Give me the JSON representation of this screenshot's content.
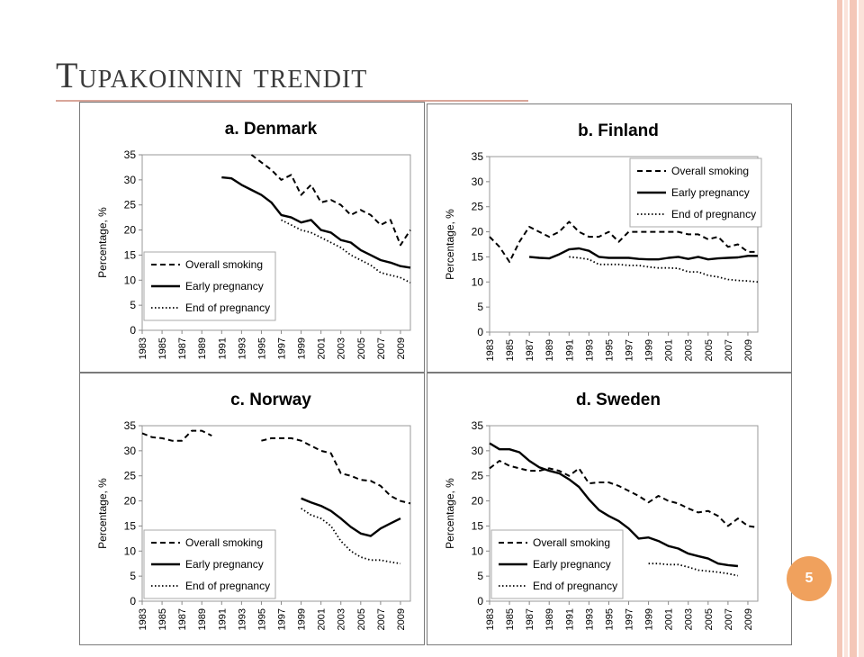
{
  "slide": {
    "title": "Tupakoinnin trendit",
    "page_number": "5",
    "colors": {
      "stripe": "#f4c7b8",
      "stripe_light": "#fbe3da",
      "badge": "#f0a15d",
      "rule": "#d9a69a"
    }
  },
  "chart_data": [
    {
      "type": "line",
      "title": "a. Denmark",
      "ylabel": "Percentage, %",
      "xlabel": "",
      "ylim": [
        0,
        35
      ],
      "yticks": [
        0,
        5,
        10,
        15,
        20,
        25,
        30,
        35
      ],
      "xticks": [
        1983,
        1985,
        1987,
        1989,
        1991,
        1993,
        1995,
        1997,
        1999,
        2001,
        2003,
        2005,
        2007,
        2009
      ],
      "xlim": [
        1983,
        2010
      ],
      "grid": false,
      "legend": "bottom-right",
      "series": [
        {
          "name": "Overall smoking",
          "style": "dashed",
          "points": [
            [
              1994,
              35
            ],
            [
              1995,
              33.5
            ],
            [
              1996,
              32
            ],
            [
              1997,
              30
            ],
            [
              1998,
              31
            ],
            [
              1999,
              27
            ],
            [
              2000,
              29
            ],
            [
              2001,
              25.5
            ],
            [
              2002,
              26
            ],
            [
              2003,
              25
            ],
            [
              2004,
              23
            ],
            [
              2005,
              24
            ],
            [
              2006,
              23
            ],
            [
              2007,
              21
            ],
            [
              2008,
              22
            ],
            [
              2009,
              17
            ],
            [
              2010,
              20
            ]
          ]
        },
        {
          "name": "Early pregnancy",
          "style": "solid",
          "points": [
            [
              1991,
              30.5
            ],
            [
              1992,
              30.3
            ],
            [
              1993,
              29
            ],
            [
              1994,
              28
            ],
            [
              1995,
              27
            ],
            [
              1996,
              25.5
            ],
            [
              1997,
              23
            ],
            [
              1998,
              22.5
            ],
            [
              1999,
              21.5
            ],
            [
              2000,
              22
            ],
            [
              2001,
              20
            ],
            [
              2002,
              19.5
            ],
            [
              2003,
              18
            ],
            [
              2004,
              17.5
            ],
            [
              2005,
              16
            ],
            [
              2006,
              15
            ],
            [
              2007,
              14
            ],
            [
              2008,
              13.5
            ],
            [
              2009,
              12.8
            ],
            [
              2010,
              12.5
            ]
          ]
        },
        {
          "name": "End of pregnancy",
          "style": "dotted",
          "points": [
            [
              1997,
              22
            ],
            [
              1998,
              21
            ],
            [
              1999,
              20
            ],
            [
              2000,
              19.5
            ],
            [
              2001,
              18.5
            ],
            [
              2002,
              17.5
            ],
            [
              2003,
              16.5
            ],
            [
              2004,
              15
            ],
            [
              2005,
              14
            ],
            [
              2006,
              13
            ],
            [
              2007,
              11.5
            ],
            [
              2008,
              11
            ],
            [
              2009,
              10.5
            ],
            [
              2010,
              9.5
            ]
          ]
        }
      ]
    },
    {
      "type": "line",
      "title": "b. Finland",
      "ylabel": "Percentage, %",
      "xlabel": "",
      "ylim": [
        0,
        35
      ],
      "yticks": [
        0,
        5,
        10,
        15,
        20,
        25,
        30,
        35
      ],
      "xticks": [
        1983,
        1985,
        1987,
        1989,
        1991,
        1993,
        1995,
        1997,
        1999,
        2001,
        2003,
        2005,
        2007,
        2009
      ],
      "xlim": [
        1983,
        2010
      ],
      "grid": false,
      "legend": "top-right",
      "series": [
        {
          "name": "Overall smoking",
          "style": "dashed",
          "points": [
            [
              1983,
              19
            ],
            [
              1984,
              17
            ],
            [
              1985,
              14
            ],
            [
              1986,
              18
            ],
            [
              1987,
              21
            ],
            [
              1988,
              20
            ],
            [
              1989,
              19
            ],
            [
              1990,
              20
            ],
            [
              1991,
              22
            ],
            [
              1992,
              20
            ],
            [
              1993,
              19
            ],
            [
              1994,
              19
            ],
            [
              1995,
              20
            ],
            [
              1996,
              18
            ],
            [
              1997,
              20
            ],
            [
              1998,
              20
            ],
            [
              1999,
              20
            ],
            [
              2000,
              20
            ],
            [
              2001,
              20
            ],
            [
              2002,
              20
            ],
            [
              2003,
              19.5
            ],
            [
              2004,
              19.5
            ],
            [
              2005,
              18.5
            ],
            [
              2006,
              19
            ],
            [
              2007,
              17
            ],
            [
              2008,
              17.5
            ],
            [
              2009,
              16
            ],
            [
              2010,
              16
            ]
          ]
        },
        {
          "name": "Early pregnancy",
          "style": "solid",
          "points": [
            [
              1987,
              15
            ],
            [
              1988,
              14.8
            ],
            [
              1989,
              14.7
            ],
            [
              1990,
              15.5
            ],
            [
              1991,
              16.5
            ],
            [
              1992,
              16.7
            ],
            [
              1993,
              16.2
            ],
            [
              1994,
              15
            ],
            [
              1995,
              14.8
            ],
            [
              1996,
              14.8
            ],
            [
              1997,
              14.8
            ],
            [
              1998,
              14.6
            ],
            [
              1999,
              14.5
            ],
            [
              2000,
              14.5
            ],
            [
              2001,
              14.8
            ],
            [
              2002,
              15
            ],
            [
              2003,
              14.6
            ],
            [
              2004,
              15
            ],
            [
              2005,
              14.5
            ],
            [
              2006,
              14.7
            ],
            [
              2007,
              14.8
            ],
            [
              2008,
              14.9
            ],
            [
              2009,
              15.2
            ],
            [
              2010,
              15.2
            ]
          ]
        },
        {
          "name": "End of pregnancy",
          "style": "dotted",
          "points": [
            [
              1991,
              15
            ],
            [
              1992,
              14.8
            ],
            [
              1993,
              14.5
            ],
            [
              1994,
              13.5
            ],
            [
              1995,
              13.5
            ],
            [
              1996,
              13.5
            ],
            [
              1997,
              13.3
            ],
            [
              1998,
              13.3
            ],
            [
              1999,
              13
            ],
            [
              2000,
              12.8
            ],
            [
              2001,
              12.8
            ],
            [
              2002,
              12.7
            ],
            [
              2003,
              12
            ],
            [
              2004,
              12
            ],
            [
              2005,
              11.3
            ],
            [
              2006,
              11
            ],
            [
              2007,
              10.5
            ],
            [
              2008,
              10.3
            ],
            [
              2009,
              10.2
            ],
            [
              2010,
              10
            ]
          ]
        }
      ]
    },
    {
      "type": "line",
      "title": "c. Norway",
      "ylabel": "Percentage, %",
      "xlabel": "",
      "ylim": [
        0,
        35
      ],
      "yticks": [
        0,
        5,
        10,
        15,
        20,
        25,
        30,
        35
      ],
      "xticks": [
        1983,
        1985,
        1987,
        1989,
        1991,
        1993,
        1995,
        1997,
        1999,
        2001,
        2003,
        2005,
        2007,
        2009
      ],
      "xlim": [
        1983,
        2010
      ],
      "grid": false,
      "legend": "bottom-left",
      "series": [
        {
          "name": "Overall smoking",
          "style": "dashed",
          "points": [
            [
              1983,
              33.5
            ],
            [
              1984,
              32.7
            ],
            [
              1985,
              32.5
            ],
            [
              1986,
              32
            ],
            [
              1987,
              32
            ],
            [
              1988,
              34
            ],
            [
              1989,
              34
            ],
            [
              1990,
              33
            ],
            [
              1991,
              null
            ],
            [
              1995,
              32
            ],
            [
              1996,
              32.5
            ],
            [
              1997,
              32.5
            ],
            [
              1998,
              32.5
            ],
            [
              1999,
              32
            ],
            [
              2000,
              31
            ],
            [
              2001,
              30
            ],
            [
              2002,
              29.5
            ],
            [
              2003,
              25.5
            ],
            [
              2004,
              25
            ],
            [
              2005,
              24.2
            ],
            [
              2006,
              24
            ],
            [
              2007,
              23
            ],
            [
              2008,
              21
            ],
            [
              2009,
              20
            ],
            [
              2010,
              19.5
            ]
          ]
        },
        {
          "name": "Early pregnancy",
          "style": "solid",
          "points": [
            [
              1999,
              20.5
            ],
            [
              2000,
              19.7
            ],
            [
              2001,
              19
            ],
            [
              2002,
              18
            ],
            [
              2003,
              16.5
            ],
            [
              2004,
              14.8
            ],
            [
              2005,
              13.5
            ],
            [
              2006,
              13
            ],
            [
              2007,
              14.5
            ],
            [
              2008,
              15.5
            ],
            [
              2009,
              16.5
            ]
          ]
        },
        {
          "name": "End of pregnancy",
          "style": "dotted",
          "points": [
            [
              1999,
              18.5
            ],
            [
              2000,
              17.2
            ],
            [
              2001,
              16.5
            ],
            [
              2002,
              15
            ],
            [
              2003,
              12
            ],
            [
              2004,
              10
            ],
            [
              2005,
              8.8
            ],
            [
              2006,
              8.2
            ],
            [
              2007,
              8.2
            ],
            [
              2008,
              7.8
            ],
            [
              2009,
              7.5
            ]
          ]
        }
      ]
    },
    {
      "type": "line",
      "title": "d. Sweden",
      "ylabel": "Percentage, %",
      "xlabel": "",
      "ylim": [
        0,
        35
      ],
      "yticks": [
        0,
        5,
        10,
        15,
        20,
        25,
        30,
        35
      ],
      "xticks": [
        1983,
        1985,
        1987,
        1989,
        1991,
        1993,
        1995,
        1997,
        1999,
        2001,
        2003,
        2005,
        2007,
        2009
      ],
      "xlim": [
        1983,
        2010
      ],
      "grid": false,
      "legend": "bottom-left",
      "series": [
        {
          "name": "Overall smoking",
          "style": "dashed",
          "points": [
            [
              1983,
              26.5
            ],
            [
              1984,
              28
            ],
            [
              1985,
              27
            ],
            [
              1986,
              26.5
            ],
            [
              1987,
              26
            ],
            [
              1988,
              26
            ],
            [
              1989,
              26.5
            ],
            [
              1990,
              26
            ],
            [
              1991,
              25
            ],
            [
              1992,
              26.5
            ],
            [
              1993,
              23.5
            ],
            [
              1994,
              23.7
            ],
            [
              1995,
              23.7
            ],
            [
              1996,
              23
            ],
            [
              1997,
              22
            ],
            [
              1998,
              21
            ],
            [
              1999,
              19.7
            ],
            [
              2000,
              21
            ],
            [
              2001,
              20
            ],
            [
              2002,
              19.5
            ],
            [
              2003,
              18.5
            ],
            [
              2004,
              17.7
            ],
            [
              2005,
              18
            ],
            [
              2006,
              17
            ],
            [
              2007,
              15
            ],
            [
              2008,
              16.5
            ],
            [
              2009,
              15
            ],
            [
              2010,
              14.7
            ]
          ]
        },
        {
          "name": "Early pregnancy",
          "style": "solid",
          "points": [
            [
              1983,
              31.5
            ],
            [
              1984,
              30.3
            ],
            [
              1985,
              30.3
            ],
            [
              1986,
              29.7
            ],
            [
              1987,
              28
            ],
            [
              1988,
              26.7
            ],
            [
              1989,
              26
            ],
            [
              1990,
              25.5
            ],
            [
              1991,
              24.3
            ],
            [
              1992,
              22.8
            ],
            [
              1993,
              20.3
            ],
            [
              1994,
              18.2
            ],
            [
              1995,
              17
            ],
            [
              1996,
              16
            ],
            [
              1997,
              14.5
            ],
            [
              1998,
              12.5
            ],
            [
              1999,
              12.7
            ],
            [
              2000,
              12
            ],
            [
              2001,
              11
            ],
            [
              2002,
              10.5
            ],
            [
              2003,
              9.5
            ],
            [
              2004,
              9
            ],
            [
              2005,
              8.5
            ],
            [
              2006,
              7.5
            ],
            [
              2007,
              7.2
            ],
            [
              2008,
              7
            ]
          ]
        },
        {
          "name": "End of pregnancy",
          "style": "dotted",
          "points": [
            [
              1999,
              7.5
            ],
            [
              2000,
              7.5
            ],
            [
              2001,
              7.3
            ],
            [
              2002,
              7.3
            ],
            [
              2003,
              6.8
            ],
            [
              2004,
              6.2
            ],
            [
              2005,
              6
            ],
            [
              2006,
              5.8
            ],
            [
              2007,
              5.5
            ],
            [
              2008,
              5.1
            ]
          ]
        }
      ]
    }
  ]
}
